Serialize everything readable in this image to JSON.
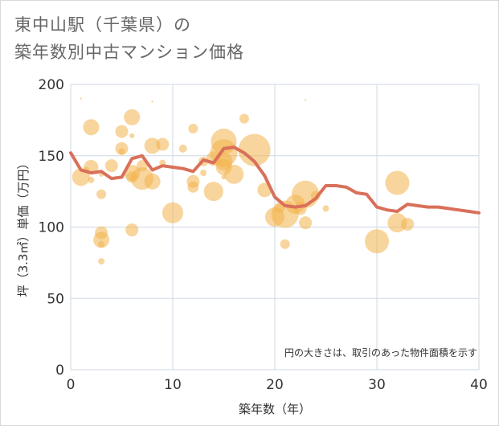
{
  "title_line1": "東中山駅（千葉県）の",
  "title_line2": "築年数別中古マンション価格",
  "note": "円の大きさは、取引のあった物件面積を示す",
  "colors": {
    "bubble": "#f2b34a",
    "line": "#d9705a",
    "grid": "#cfd8e3"
  },
  "chart_data": {
    "type": "scatter",
    "xlabel": "築年数（年）",
    "ylabel": "坪（3.3㎡）単価（万円）",
    "xlim": [
      0,
      40
    ],
    "ylim": [
      0,
      200
    ],
    "xticks": [
      0,
      10,
      20,
      30,
      40
    ],
    "yticks": [
      0,
      50,
      100,
      150,
      200
    ],
    "grid": true,
    "series": [
      {
        "type": "bubble",
        "points": [
          {
            "x": 1,
            "y": 190,
            "r": 1
          },
          {
            "x": 1,
            "y": 135,
            "r": 11
          },
          {
            "x": 1.5,
            "y": 140,
            "r": 4
          },
          {
            "x": 2,
            "y": 170,
            "r": 10
          },
          {
            "x": 2,
            "y": 142,
            "r": 9
          },
          {
            "x": 2,
            "y": 133,
            "r": 4
          },
          {
            "x": 3,
            "y": 123,
            "r": 6
          },
          {
            "x": 3,
            "y": 96,
            "r": 8
          },
          {
            "x": 3,
            "y": 91,
            "r": 10
          },
          {
            "x": 3,
            "y": 88,
            "r": 4
          },
          {
            "x": 3,
            "y": 76,
            "r": 4
          },
          {
            "x": 3,
            "y": 137,
            "r": 3
          },
          {
            "x": 4,
            "y": 143,
            "r": 8
          },
          {
            "x": 5,
            "y": 167,
            "r": 8
          },
          {
            "x": 5,
            "y": 155,
            "r": 8
          },
          {
            "x": 5,
            "y": 153,
            "r": 4
          },
          {
            "x": 6,
            "y": 177,
            "r": 10
          },
          {
            "x": 6,
            "y": 164,
            "r": 3
          },
          {
            "x": 6,
            "y": 138,
            "r": 10
          },
          {
            "x": 6,
            "y": 135,
            "r": 7
          },
          {
            "x": 6,
            "y": 98,
            "r": 8
          },
          {
            "x": 7,
            "y": 143,
            "r": 7
          },
          {
            "x": 7,
            "y": 134,
            "r": 14
          },
          {
            "x": 8,
            "y": 188,
            "r": 1
          },
          {
            "x": 8,
            "y": 157,
            "r": 10
          },
          {
            "x": 8,
            "y": 132,
            "r": 10
          },
          {
            "x": 9,
            "y": 158,
            "r": 8
          },
          {
            "x": 9,
            "y": 145,
            "r": 4
          },
          {
            "x": 10,
            "y": 110,
            "r": 13
          },
          {
            "x": 11,
            "y": 155,
            "r": 5
          },
          {
            "x": 12,
            "y": 169,
            "r": 6
          },
          {
            "x": 12,
            "y": 132,
            "r": 8
          },
          {
            "x": 12,
            "y": 128,
            "r": 7
          },
          {
            "x": 13,
            "y": 146,
            "r": 6
          },
          {
            "x": 13,
            "y": 138,
            "r": 4
          },
          {
            "x": 14,
            "y": 125,
            "r": 12
          },
          {
            "x": 14,
            "y": 148,
            "r": 9
          },
          {
            "x": 15,
            "y": 160,
            "r": 16
          },
          {
            "x": 15,
            "y": 152,
            "r": 17
          },
          {
            "x": 15,
            "y": 146,
            "r": 11
          },
          {
            "x": 15,
            "y": 142,
            "r": 10
          },
          {
            "x": 15,
            "y": 135,
            "r": 3
          },
          {
            "x": 16,
            "y": 137,
            "r": 12
          },
          {
            "x": 17,
            "y": 176,
            "r": 6
          },
          {
            "x": 18,
            "y": 154,
            "r": 20
          },
          {
            "x": 19,
            "y": 126,
            "r": 9
          },
          {
            "x": 20,
            "y": 107,
            "r": 12
          },
          {
            "x": 20.5,
            "y": 113,
            "r": 6
          },
          {
            "x": 21,
            "y": 109,
            "r": 17
          },
          {
            "x": 21,
            "y": 88,
            "r": 6
          },
          {
            "x": 22,
            "y": 116,
            "r": 12
          },
          {
            "x": 22.5,
            "y": 113,
            "r": 8
          },
          {
            "x": 23,
            "y": 189,
            "r": 1
          },
          {
            "x": 23,
            "y": 123,
            "r": 17
          },
          {
            "x": 23,
            "y": 103,
            "r": 8
          },
          {
            "x": 24,
            "y": 122,
            "r": 6
          },
          {
            "x": 25,
            "y": 113,
            "r": 4
          },
          {
            "x": 30,
            "y": 90,
            "r": 15
          },
          {
            "x": 32,
            "y": 131,
            "r": 15
          },
          {
            "x": 32,
            "y": 103,
            "r": 12
          },
          {
            "x": 33,
            "y": 102,
            "r": 8
          }
        ]
      },
      {
        "type": "line",
        "x": [
          0,
          1,
          2,
          3,
          4,
          5,
          6,
          7,
          8,
          9,
          10,
          11,
          12,
          13,
          14,
          15,
          16,
          17,
          18,
          19,
          20,
          21,
          22,
          23,
          24,
          25,
          26,
          27,
          28,
          29,
          30,
          31,
          32,
          33,
          34,
          35,
          36,
          37,
          38,
          39,
          40
        ],
        "y": [
          152,
          140,
          138,
          139,
          134,
          135,
          148,
          150,
          140,
          143,
          142,
          141,
          139,
          147,
          145,
          155,
          156,
          152,
          146,
          136,
          121,
          115,
          114,
          115,
          120,
          129,
          129,
          128,
          124,
          123,
          114,
          112,
          111,
          116,
          115,
          114,
          114,
          113,
          112,
          111,
          110
        ]
      }
    ]
  }
}
